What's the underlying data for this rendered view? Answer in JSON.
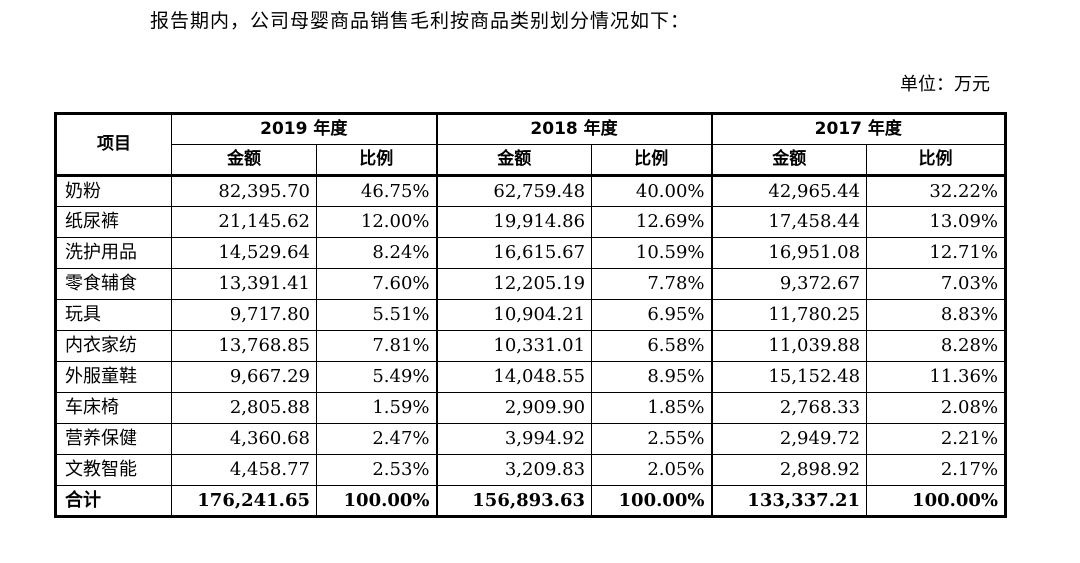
{
  "intro_text": "报告期内，公司母婴商品销售毛利按商品类别划分情况如下：",
  "unit_label": "单位：万元",
  "table": {
    "item_header": "项目",
    "years": [
      {
        "label": "2019 年度",
        "amount_header": "金额",
        "ratio_header": "比例"
      },
      {
        "label": "2018 年度",
        "amount_header": "金额",
        "ratio_header": "比例"
      },
      {
        "label": "2017 年度",
        "amount_header": "金额",
        "ratio_header": "比例"
      }
    ],
    "rows": [
      {
        "name": "奶粉",
        "v": [
          "82,395.70",
          "46.75%",
          "62,759.48",
          "40.00%",
          "42,965.44",
          "32.22%"
        ]
      },
      {
        "name": "纸尿裤",
        "v": [
          "21,145.62",
          "12.00%",
          "19,914.86",
          "12.69%",
          "17,458.44",
          "13.09%"
        ]
      },
      {
        "name": "洗护用品",
        "v": [
          "14,529.64",
          "8.24%",
          "16,615.67",
          "10.59%",
          "16,951.08",
          "12.71%"
        ]
      },
      {
        "name": "零食辅食",
        "v": [
          "13,391.41",
          "7.60%",
          "12,205.19",
          "7.78%",
          "9,372.67",
          "7.03%"
        ]
      },
      {
        "name": "玩具",
        "v": [
          "9,717.80",
          "5.51%",
          "10,904.21",
          "6.95%",
          "11,780.25",
          "8.83%"
        ]
      },
      {
        "name": "内衣家纺",
        "v": [
          "13,768.85",
          "7.81%",
          "10,331.01",
          "6.58%",
          "11,039.88",
          "8.28%"
        ]
      },
      {
        "name": "外服童鞋",
        "v": [
          "9,667.29",
          "5.49%",
          "14,048.55",
          "8.95%",
          "15,152.48",
          "11.36%"
        ]
      },
      {
        "name": "车床椅",
        "v": [
          "2,805.88",
          "1.59%",
          "2,909.90",
          "1.85%",
          "2,768.33",
          "2.08%"
        ]
      },
      {
        "name": "营养保健",
        "v": [
          "4,360.68",
          "2.47%",
          "3,994.92",
          "2.55%",
          "2,949.72",
          "2.21%"
        ]
      },
      {
        "name": "文教智能",
        "v": [
          "4,458.77",
          "2.53%",
          "3,209.83",
          "2.05%",
          "2,898.92",
          "2.17%"
        ]
      }
    ],
    "total": {
      "name": "合计",
      "v": [
        "176,241.65",
        "100.00%",
        "156,893.63",
        "100.00%",
        "133,337.21",
        "100.00%"
      ]
    }
  }
}
